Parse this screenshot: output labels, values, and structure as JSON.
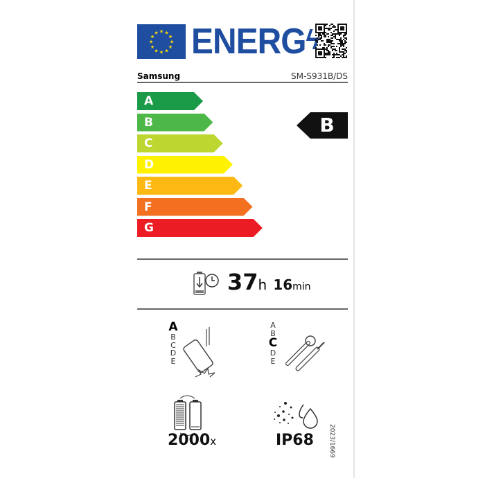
{
  "header": {
    "logo_text": "ENERG",
    "brand": "Samsung",
    "model": "SM-S931B/DS"
  },
  "scale": {
    "classes": [
      {
        "letter": "A",
        "color": "#1b9a48"
      },
      {
        "letter": "B",
        "color": "#4db848"
      },
      {
        "letter": "C",
        "color": "#bdd630"
      },
      {
        "letter": "D",
        "color": "#fff200"
      },
      {
        "letter": "E",
        "color": "#fdb913"
      },
      {
        "letter": "F",
        "color": "#f37021"
      },
      {
        "letter": "G",
        "color": "#ec1c24"
      }
    ],
    "selected": "B"
  },
  "endurance": {
    "hours": "37",
    "hours_unit": "h",
    "minutes": "16",
    "minutes_unit": "min"
  },
  "drop_resistance": {
    "classes": [
      "A",
      "B",
      "C",
      "D",
      "E"
    ],
    "selected": "A"
  },
  "repairability": {
    "classes": [
      "A",
      "B",
      "C",
      "D",
      "E"
    ],
    "selected": "C"
  },
  "battery_cycles": {
    "value": "2000",
    "unit": "x"
  },
  "ingress_protection": "IP68",
  "regulation": "2023/1669"
}
